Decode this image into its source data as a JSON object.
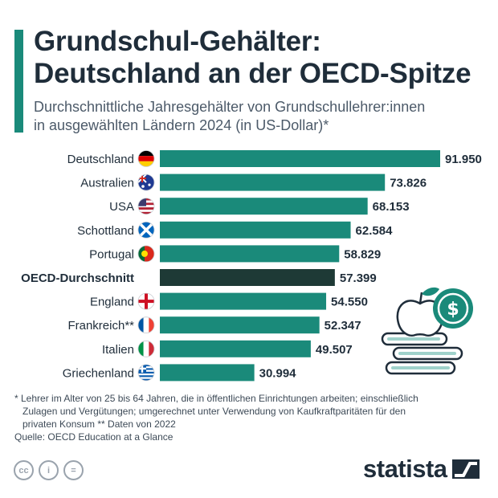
{
  "header": {
    "title_line1": "Grundschul-Gehälter:",
    "title_line2": "Deutschland an der OECD-Spitze",
    "subtitle_line1": "Durchschnittliche Jahresgehälter von Grundschullehrer:innen",
    "subtitle_line2": "in ausgewählten Ländern 2024 (in US-Dollar)*"
  },
  "colors": {
    "accent": "#1a8a7a",
    "bar": "#1a8a7a",
    "bar_highlight": "#1e3a36",
    "title": "#1f2d3a"
  },
  "chart_data": {
    "type": "bar",
    "orientation": "horizontal",
    "categories": [
      "Deutschland",
      "Australien",
      "USA",
      "Schottland",
      "Portugal",
      "OECD-Durchschnitt",
      "England",
      "Frankreich**",
      "Italien",
      "Griechenland"
    ],
    "values": [
      91950,
      73826,
      68153,
      62584,
      58829,
      57399,
      54550,
      52347,
      49507,
      30994
    ],
    "value_labels": [
      "91.950",
      "73.826",
      "68.153",
      "62.584",
      "58.829",
      "57.399",
      "54.550",
      "52.347",
      "49.507",
      "30.994"
    ],
    "flags": [
      "de",
      "au",
      "us",
      "scot",
      "pt",
      "",
      "eng",
      "fr",
      "it",
      "gr"
    ],
    "highlight": "OECD-Durchschnitt",
    "xlim": [
      0,
      91950
    ],
    "title": "Grundschul-Gehälter: Deutschland an der OECD-Spitze",
    "unit": "US-Dollar"
  },
  "footnote": {
    "line1": "* Lehrer im Alter von 25 bis 64 Jahren, die in öffentlichen Einrichtungen arbeiten; einschließlich",
    "line2": "Zulagen und Vergütungen; umgerechnet unter Verwendung von Kaufkraftparitäten für den",
    "line3": "privaten Konsum    ** Daten von 2022"
  },
  "source": "Quelle: OECD Education at a Glance",
  "license_icons": [
    {
      "name": "cc-icon",
      "glyph": "cc"
    },
    {
      "name": "attribution-icon",
      "glyph": "i"
    },
    {
      "name": "no-derivatives-icon",
      "glyph": "="
    }
  ],
  "brand": "statista"
}
